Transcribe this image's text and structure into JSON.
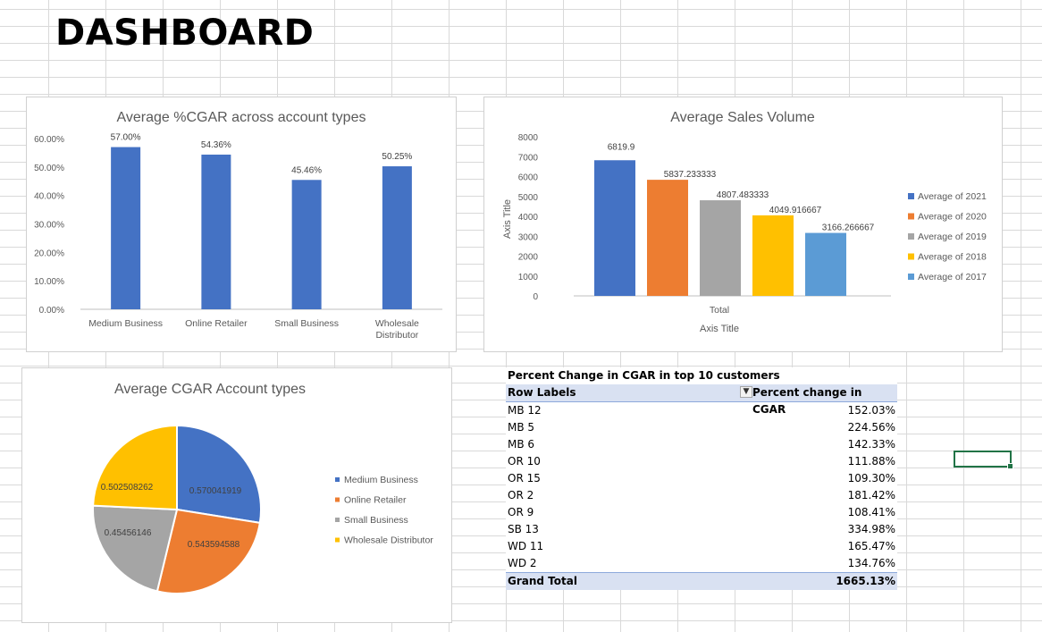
{
  "dashboard_title": "DASHBOARD",
  "chart_data": [
    {
      "type": "bar",
      "title": "Average %CGAR across account types",
      "categories": [
        "Medium Business",
        "Online Retailer",
        "Small Business",
        "Wholesale Distributor"
      ],
      "category_lines": [
        [
          "Medium Business"
        ],
        [
          "Online Retailer"
        ],
        [
          "Small Business"
        ],
        [
          "Wholesale",
          "Distributor"
        ]
      ],
      "values": [
        57.0,
        54.36,
        45.46,
        50.25
      ],
      "value_labels": [
        "57.00%",
        "54.36%",
        "45.46%",
        "50.25%"
      ],
      "yticks": [
        "0.00%",
        "10.00%",
        "20.00%",
        "30.00%",
        "40.00%",
        "50.00%",
        "60.00%"
      ],
      "ylim": [
        0,
        60
      ],
      "color": "#4472c4"
    },
    {
      "type": "bar",
      "title": "Average Sales Volume",
      "xlabel": "Axis Title",
      "ylabel": "Axis Title",
      "categories": [
        "Total"
      ],
      "series": [
        {
          "name": "Average of 2021",
          "values": [
            6819.9
          ],
          "label": "6819.9",
          "color": "#4472c4"
        },
        {
          "name": "Average of 2020",
          "values": [
            5837.233333
          ],
          "label": "5837.233333",
          "color": "#ed7d31"
        },
        {
          "name": "Average of 2019",
          "values": [
            4807.483333
          ],
          "label": "4807.483333",
          "color": "#a5a5a5"
        },
        {
          "name": "Average of 2018",
          "values": [
            4049.916667
          ],
          "label": "4049.916667",
          "color": "#ffc000"
        },
        {
          "name": "Average of 2017",
          "values": [
            3166.266667
          ],
          "label": "3166.266667",
          "color": "#5b9bd5"
        }
      ],
      "yticks": [
        "0",
        "1000",
        "2000",
        "3000",
        "4000",
        "5000",
        "6000",
        "7000",
        "8000"
      ],
      "ylim": [
        0,
        8000
      ],
      "legend": "right"
    },
    {
      "type": "pie",
      "title": "Average CGAR Account types",
      "slices": [
        {
          "name": "Medium Business",
          "value": 0.570041919,
          "label": "0.570041919",
          "color": "#4472c4"
        },
        {
          "name": "Online Retailer",
          "value": 0.543594588,
          "label": "0.543594588",
          "color": "#ed7d31"
        },
        {
          "name": "Small Business",
          "value": 0.45456146,
          "label": "0.45456146",
          "color": "#a5a5a5"
        },
        {
          "name": "Wholesale Distributor",
          "value": 0.502508262,
          "label": "0.502508262",
          "color": "#ffc000"
        }
      ],
      "legend": "right"
    }
  ],
  "pivot": {
    "caption": "Percent Change in CGAR in top 10 customers",
    "header_left": "Row Labels",
    "header_right": "Percent change in CGAR",
    "filter_icon": "filter-icon",
    "rows": [
      {
        "label": "MB 12",
        "value": "152.03%"
      },
      {
        "label": "MB 5",
        "value": "224.56%"
      },
      {
        "label": "MB 6",
        "value": "142.33%"
      },
      {
        "label": "OR 10",
        "value": "111.88%"
      },
      {
        "label": "OR 15",
        "value": "109.30%"
      },
      {
        "label": "OR 2",
        "value": "181.42%"
      },
      {
        "label": "OR 9",
        "value": "108.41%"
      },
      {
        "label": "SB 13",
        "value": "334.98%"
      },
      {
        "label": "WD 11",
        "value": "165.47%"
      },
      {
        "label": "WD 2",
        "value": "134.76%"
      }
    ],
    "total_label": "Grand Total",
    "total_value": "1665.13%"
  }
}
